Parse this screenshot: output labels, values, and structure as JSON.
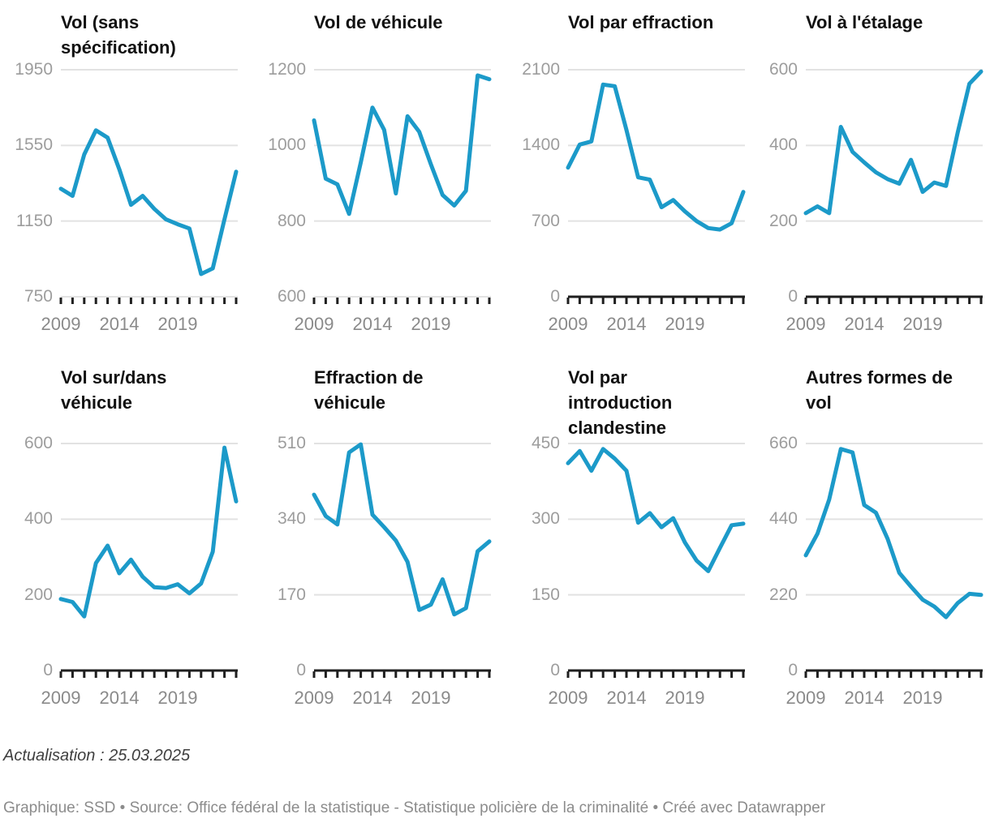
{
  "accent_color": "#1c9ac9",
  "chart_data": [
    {
      "type": "line",
      "title": "Vol (sans spécification)",
      "title_display": "Vol (sans\nspécification)",
      "x": [
        2009,
        2010,
        2011,
        2012,
        2013,
        2014,
        2015,
        2016,
        2017,
        2018,
        2019,
        2020,
        2021,
        2022,
        2023,
        2024
      ],
      "x_tick_labels": [
        "2009",
        "2014",
        "2019"
      ],
      "y_ticks": [
        750,
        1150,
        1550,
        1950
      ],
      "ylim": [
        750,
        1950
      ],
      "values": [
        1321,
        1283,
        1502,
        1630,
        1591,
        1424,
        1236,
        1283,
        1214,
        1159,
        1133,
        1111,
        870,
        900,
        1159,
        1411
      ],
      "grid": true,
      "legend": "none"
    },
    {
      "type": "line",
      "title": "Vol de véhicule",
      "title_display": "Vol de véhicule",
      "x": [
        2009,
        2010,
        2011,
        2012,
        2013,
        2014,
        2015,
        2016,
        2017,
        2018,
        2019,
        2020,
        2021,
        2022,
        2023,
        2024
      ],
      "x_tick_labels": [
        "2009",
        "2014",
        "2019"
      ],
      "y_ticks": [
        600,
        800,
        1000,
        1200
      ],
      "ylim": [
        600,
        1200
      ],
      "values": [
        1066,
        912,
        897,
        819,
        955,
        1100,
        1041,
        873,
        1077,
        1036,
        950,
        869,
        841,
        880,
        1185,
        1175
      ],
      "grid": true,
      "legend": "none"
    },
    {
      "type": "line",
      "title": "Vol par effraction",
      "title_display": "Vol par effraction",
      "x": [
        2009,
        2010,
        2011,
        2012,
        2013,
        2014,
        2015,
        2016,
        2017,
        2018,
        2019,
        2020,
        2021,
        2022,
        2023,
        2024
      ],
      "x_tick_labels": [
        "2009",
        "2014",
        "2019"
      ],
      "y_ticks": [
        0,
        700,
        1400,
        2100
      ],
      "ylim": [
        0,
        2100
      ],
      "values": [
        1195,
        1408,
        1437,
        1963,
        1948,
        1543,
        1105,
        1083,
        828,
        895,
        790,
        700,
        635,
        622,
        680,
        970
      ],
      "grid": true,
      "legend": "none"
    },
    {
      "type": "line",
      "title": "Vol à l'étalage",
      "title_display": "Vol à l'étalage",
      "x": [
        2009,
        2010,
        2011,
        2012,
        2013,
        2014,
        2015,
        2016,
        2017,
        2018,
        2019,
        2020,
        2021,
        2022,
        2023,
        2024
      ],
      "x_tick_labels": [
        "2009",
        "2014",
        "2019"
      ],
      "y_ticks": [
        0,
        200,
        400,
        600
      ],
      "ylim": [
        0,
        600
      ],
      "values": [
        221,
        239,
        221,
        449,
        383,
        355,
        329,
        311,
        299,
        362,
        277,
        302,
        293,
        434,
        563,
        595
      ],
      "grid": true,
      "legend": "none"
    },
    {
      "type": "line",
      "title": "Vol sur/dans véhicule",
      "title_display": "Vol sur/dans\nvéhicule",
      "x": [
        2009,
        2010,
        2011,
        2012,
        2013,
        2014,
        2015,
        2016,
        2017,
        2018,
        2019,
        2020,
        2021,
        2022,
        2023,
        2024
      ],
      "x_tick_labels": [
        "2009",
        "2014",
        "2019"
      ],
      "y_ticks": [
        0,
        200,
        400,
        600
      ],
      "ylim": [
        0,
        600
      ],
      "values": [
        189,
        181,
        143,
        284,
        330,
        257,
        293,
        248,
        220,
        218,
        228,
        204,
        230,
        314,
        589,
        447
      ],
      "grid": true,
      "legend": "none"
    },
    {
      "type": "line",
      "title": "Effraction de véhicule",
      "title_display": "Effraction de\nvéhicule",
      "x": [
        2009,
        2010,
        2011,
        2012,
        2013,
        2014,
        2015,
        2016,
        2017,
        2018,
        2019,
        2020,
        2021,
        2022,
        2023,
        2024
      ],
      "x_tick_labels": [
        "2009",
        "2014",
        "2019"
      ],
      "y_ticks": [
        0,
        170,
        340,
        510
      ],
      "ylim": [
        0,
        510
      ],
      "values": [
        395,
        347,
        328,
        490,
        508,
        350,
        322,
        292,
        244,
        136,
        148,
        205,
        126,
        140,
        268,
        290
      ],
      "grid": true,
      "legend": "none"
    },
    {
      "type": "line",
      "title": "Vol par introduction clandestine",
      "title_display": "Vol par\nintroduction\nclandestine",
      "x": [
        2009,
        2010,
        2011,
        2012,
        2013,
        2014,
        2015,
        2016,
        2017,
        2018,
        2019,
        2020,
        2021,
        2022,
        2023,
        2024
      ],
      "x_tick_labels": [
        "2009",
        "2014",
        "2019"
      ],
      "y_ticks": [
        0,
        150,
        300,
        450
      ],
      "ylim": [
        0,
        450
      ],
      "values": [
        411,
        435,
        396,
        439,
        420,
        396,
        293,
        312,
        284,
        302,
        254,
        218,
        197,
        243,
        288,
        291
      ],
      "grid": true,
      "legend": "none"
    },
    {
      "type": "line",
      "title": "Autres formes de vol",
      "title_display": "Autres formes de\nvol",
      "x": [
        2009,
        2010,
        2011,
        2012,
        2013,
        2014,
        2015,
        2016,
        2017,
        2018,
        2019,
        2020,
        2021,
        2022,
        2023,
        2024
      ],
      "x_tick_labels": [
        "2009",
        "2014",
        "2019"
      ],
      "y_ticks": [
        0,
        220,
        440,
        660
      ],
      "ylim": [
        0,
        660
      ],
      "values": [
        335,
        398,
        497,
        644,
        634,
        481,
        459,
        383,
        284,
        244,
        206,
        186,
        155,
        196,
        223,
        220
      ],
      "grid": true,
      "legend": "none"
    }
  ],
  "footer": {
    "update_note": "Actualisation : 25.03.2025",
    "credits": "Graphique: SSD • Source: Office fédéral de la statistique - Statistique policière de la criminalité • Créé avec Datawrapper"
  }
}
